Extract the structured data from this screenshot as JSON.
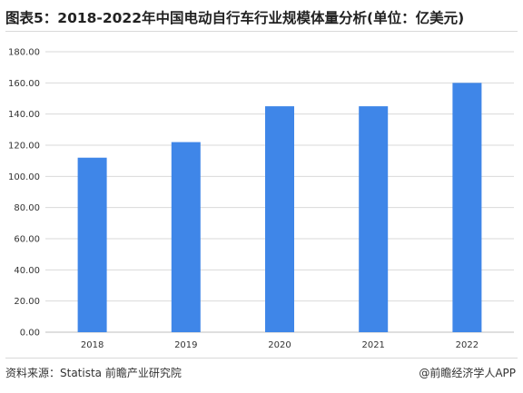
{
  "header": {
    "title": "图表5：2018-2022年中国电动自行车行业规模体量分析(单位：亿美元)"
  },
  "footer": {
    "source": "资料来源：Statista 前瞻产业研究院",
    "credit": "@前瞻经济学人APP"
  },
  "colors": {
    "bar": "#3f86e8",
    "grid": "#d9d9d9",
    "axis": "#bfbfbf"
  },
  "chart_data": {
    "type": "bar",
    "title": "图表5：2018-2022年中国电动自行车行业规模体量分析(单位：亿美元)",
    "categories": [
      "2018",
      "2019",
      "2020",
      "2021",
      "2022"
    ],
    "values": [
      112,
      122,
      145,
      145,
      160
    ],
    "ylim": [
      0,
      180
    ],
    "yticks": [
      "0.00",
      "20.00",
      "40.00",
      "60.00",
      "80.00",
      "100.00",
      "120.00",
      "140.00",
      "160.00",
      "180.00"
    ],
    "xlabel": "",
    "ylabel": "",
    "grid": true,
    "legend": "none"
  }
}
